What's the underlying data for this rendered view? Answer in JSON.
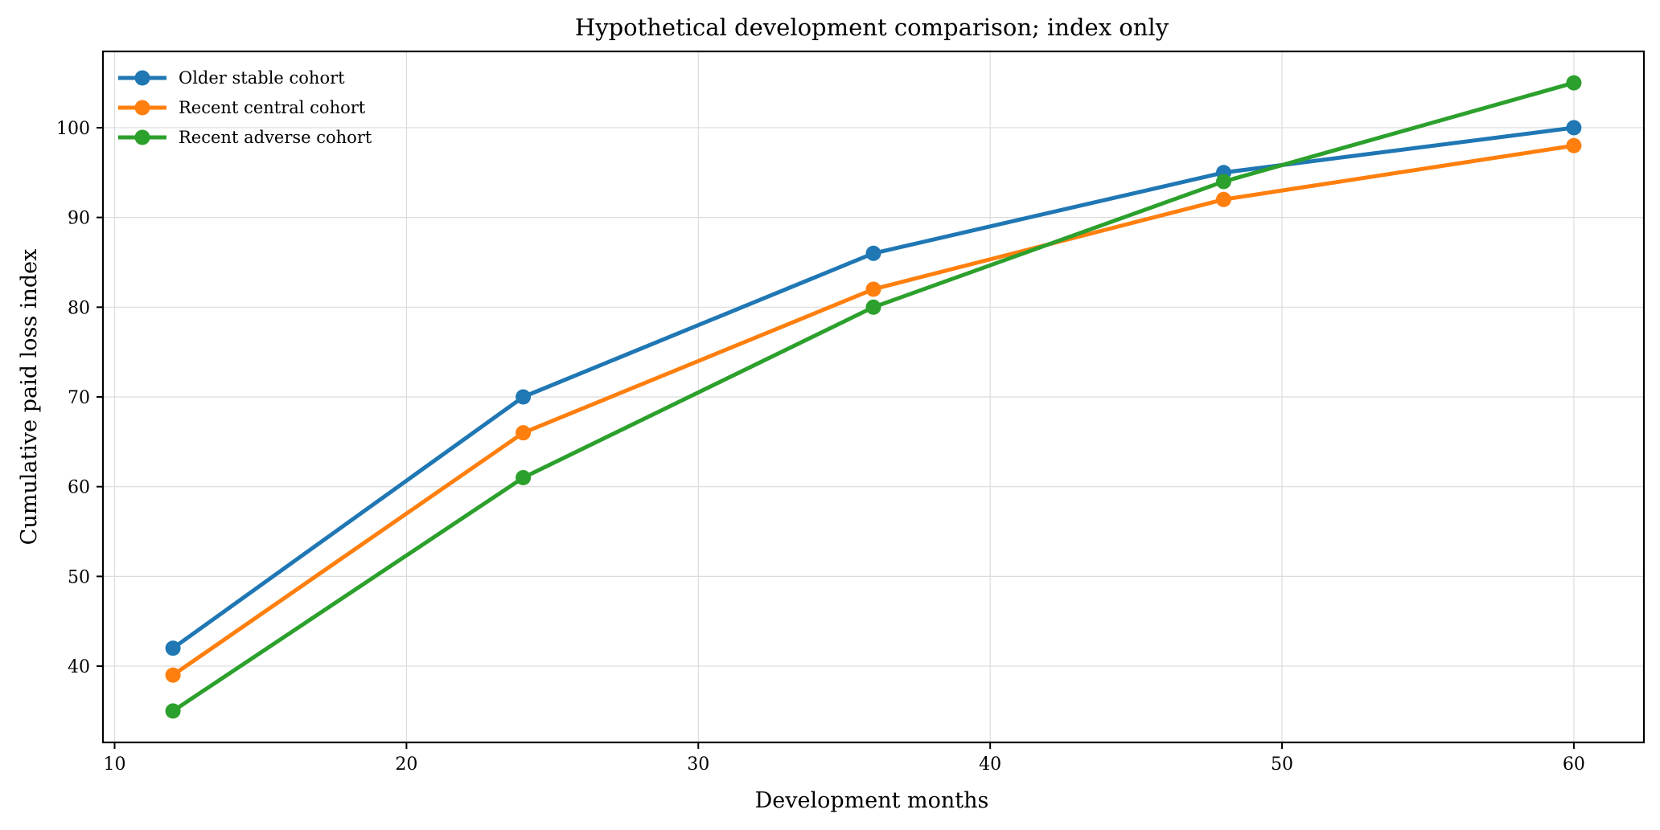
{
  "chart_data": {
    "type": "line",
    "title": "Hypothetical development comparison; index only",
    "xlabel": "Development months",
    "ylabel": "Cumulative paid loss index",
    "x": [
      12,
      24,
      36,
      48,
      60
    ],
    "xlim": [
      9.6,
      62.4
    ],
    "ylim": [
      31.5,
      108.5
    ],
    "xticks": [
      10,
      20,
      30,
      40,
      50,
      60
    ],
    "yticks": [
      40,
      50,
      60,
      70,
      80,
      90,
      100
    ],
    "grid": true,
    "legend_position": "top-left",
    "series": [
      {
        "name": "Older stable cohort",
        "color": "#1f77b4",
        "values": [
          42,
          70,
          86,
          95,
          100
        ]
      },
      {
        "name": "Recent central cohort",
        "color": "#ff7f0e",
        "values": [
          39,
          66,
          82,
          92,
          98
        ]
      },
      {
        "name": "Recent adverse cohort",
        "color": "#2ca02c",
        "values": [
          35,
          61,
          80,
          94,
          105
        ]
      }
    ]
  }
}
